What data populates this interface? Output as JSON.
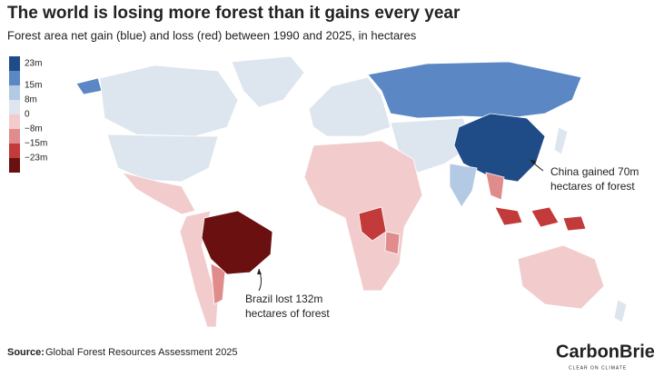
{
  "header": {
    "title": "The world is losing more forest than it gains every year",
    "subtitle": "Forest area net gain (blue) and loss (red) between 1990 and 2025, in hectares"
  },
  "legend": {
    "labels": [
      "23m",
      "15m",
      "8m",
      "0",
      "−8m",
      "−15m",
      "−23m"
    ],
    "colors": [
      "#1f4b87",
      "#5b87c4",
      "#b3c9e4",
      "#dde5ee",
      "#f2cccc",
      "#e08c8c",
      "#c23a3a",
      "#6b1010"
    ]
  },
  "annotations": [
    {
      "lines": [
        "China gained 70m",
        "hectares of forest"
      ]
    },
    {
      "lines": [
        "Brazil lost 132m",
        "hectares of forest"
      ]
    }
  ],
  "footer": {
    "source_label": "Source:",
    "source": "Global Forest Resources Assessment 2025",
    "logo": "CarbonBrief",
    "tagline": "CLEAR ON CLIMATE"
  }
}
